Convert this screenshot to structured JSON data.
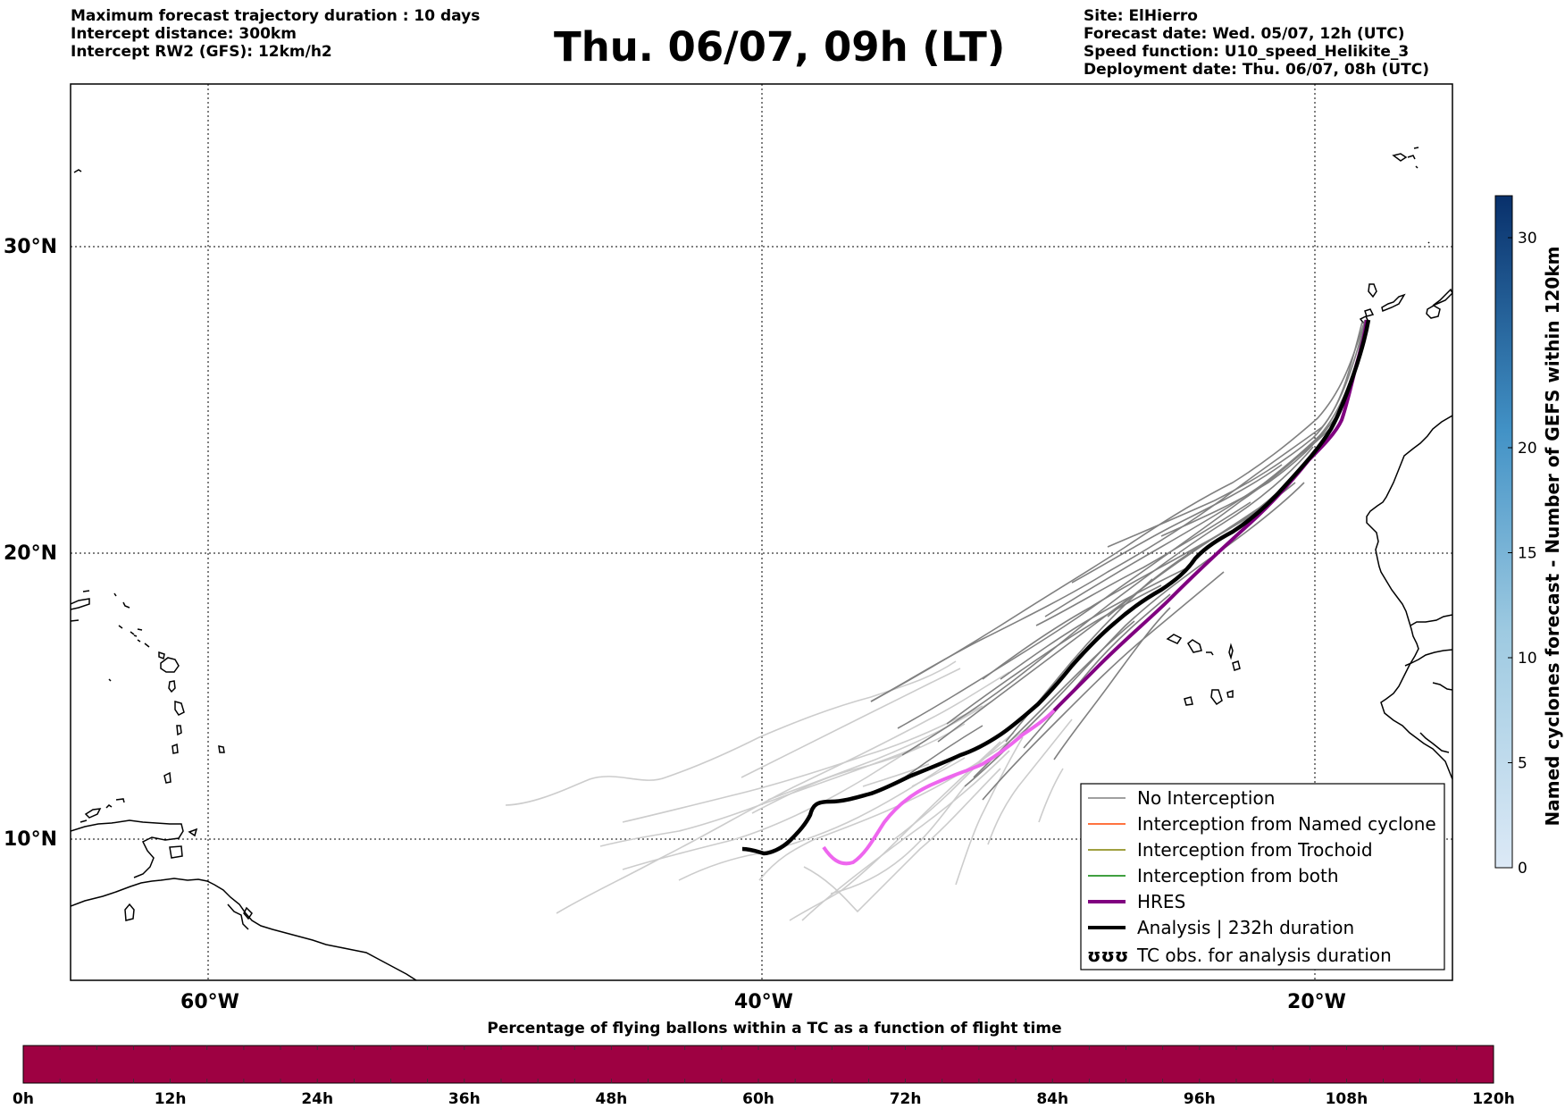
{
  "header_left": [
    "Maximum forecast trajectory duration : 10 days",
    "Intercept distance: 300km",
    "Intercept RW2 (GFS):  12km/h2"
  ],
  "title": "Thu. 06/07, 09h (LT)",
  "header_right": [
    "Site: ElHierro",
    "Forecast date: Wed. 05/07, 12h (UTC)",
    "Speed function: U10_speed_Helikite_3",
    "Deployment date: Thu. 06/07, 08h (UTC)"
  ],
  "map": {
    "lon_range": [
      -65,
      -15
    ],
    "lat_range": [
      5,
      34
    ],
    "lat_ticks": [
      {
        "value": 30,
        "label": "30°N"
      },
      {
        "value": 20,
        "label": "20°N"
      },
      {
        "value": 10,
        "label": "10°N"
      }
    ],
    "lon_ticks": [
      {
        "value": -60,
        "label": "60°W"
      },
      {
        "value": -40,
        "label": "40°W"
      },
      {
        "value": -20,
        "label": "20°W"
      }
    ],
    "grid": true,
    "colors": {
      "no_interception": "#808080",
      "faded": "#cccccc",
      "hres": "#800080",
      "hres_faded": "#ee66ee",
      "analysis": "#000000",
      "named_cyclone": "#ff4500",
      "trochoid": "#808000",
      "both": "#008000",
      "coast": "#000000"
    }
  },
  "legend": {
    "placement": "bottom-right",
    "items": [
      {
        "label": "No Interception",
        "color": "#808080",
        "style": "thin"
      },
      {
        "label": "Interception from Named cyclone",
        "color": "#ff4500",
        "style": "thin"
      },
      {
        "label": "Interception from Trochoid",
        "color": "#808000",
        "style": "thin"
      },
      {
        "label": "Interception from both",
        "color": "#008000",
        "style": "thin"
      },
      {
        "label": "HRES",
        "color": "#800080",
        "style": "thick"
      },
      {
        "label": "Analysis | 232h duration",
        "color": "#000000",
        "style": "thick"
      },
      {
        "label": "TC obs. for analysis duration",
        "color": "#000000",
        "style": "symbol",
        "symbol": "ʊʊʊ"
      }
    ]
  },
  "colorbar_right": {
    "label": "Named cyclones forecast - Number of GEFS within 120km",
    "range": [
      0,
      32
    ],
    "ticks": [
      {
        "value": 0,
        "label": "0"
      },
      {
        "value": 5,
        "label": "5"
      },
      {
        "value": 10,
        "label": "10"
      },
      {
        "value": 15,
        "label": "15"
      },
      {
        "value": 20,
        "label": "20"
      },
      {
        "value": 30,
        "label": "30"
      }
    ],
    "color_low": "#dce9f6",
    "color_high": "#08306b"
  },
  "bottom_bar": {
    "title": "Percentage of flying ballons within a TC as a function of flight time",
    "color": "#9e0142",
    "segments": 40,
    "ticks": [
      "0h",
      "12h",
      "24h",
      "36h",
      "48h",
      "60h",
      "72h",
      "84h",
      "96h",
      "108h",
      "120h"
    ]
  }
}
